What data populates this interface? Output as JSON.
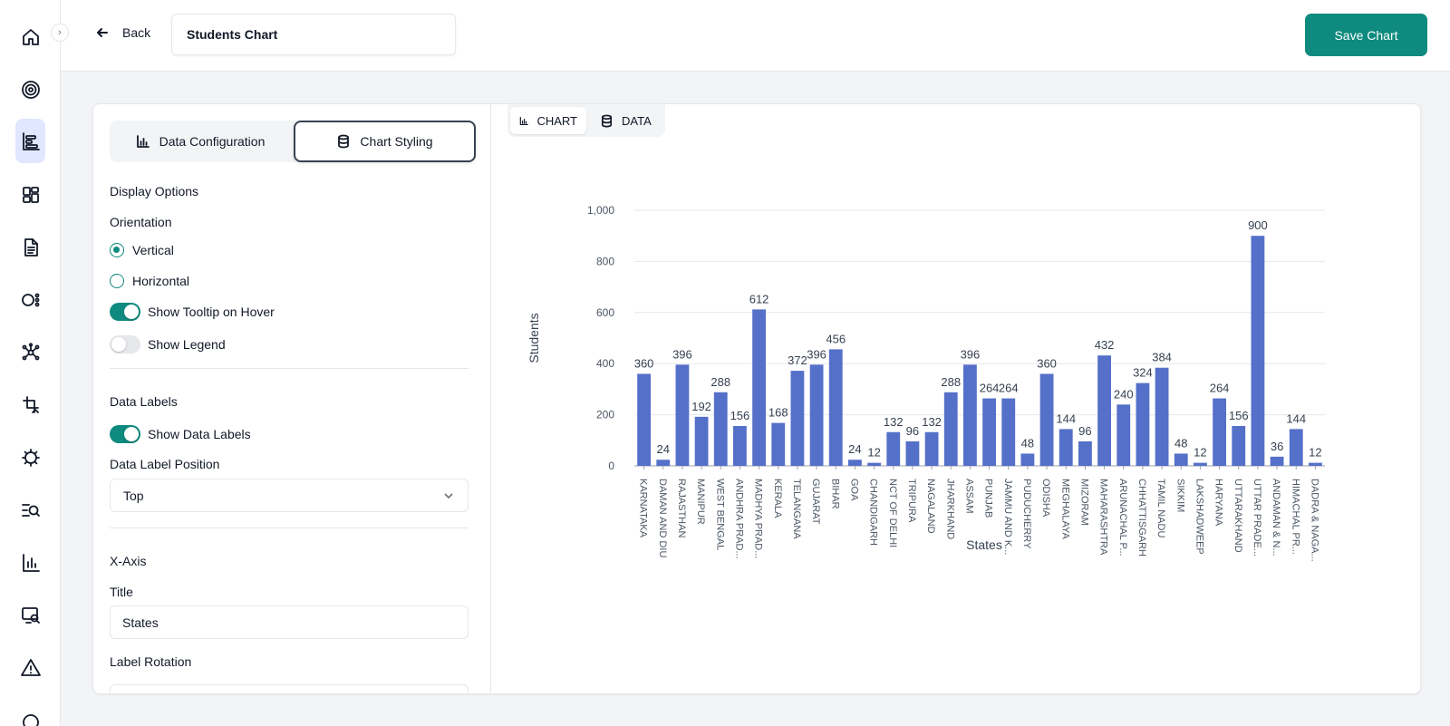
{
  "sidebar": {
    "toggle_icon": "chevron-right-icon",
    "items": [
      {
        "icon": "home-icon",
        "active": false
      },
      {
        "icon": "target-icon",
        "active": false
      },
      {
        "icon": "chart-builder-icon",
        "active": true
      },
      {
        "icon": "dashboard-grid-icon",
        "active": false
      },
      {
        "icon": "document-icon",
        "active": false
      },
      {
        "icon": "flow-icon",
        "active": false
      },
      {
        "icon": "network-icon",
        "active": false
      },
      {
        "icon": "transform-icon",
        "active": false
      },
      {
        "icon": "settings-gear-icon",
        "active": false
      },
      {
        "icon": "list-search-icon",
        "active": false
      },
      {
        "icon": "bar-chart-icon",
        "active": false
      },
      {
        "icon": "monitor-search-icon",
        "active": false
      },
      {
        "icon": "warning-icon",
        "active": false
      }
    ]
  },
  "header": {
    "back_label": "Back",
    "chart_name": "Students Chart",
    "save_label": "Save Chart"
  },
  "config": {
    "tabs": {
      "data_configuration": "Data Configuration",
      "chart_styling": "Chart Styling"
    },
    "active_tab": "chart_styling",
    "display_options": {
      "heading": "Display Options",
      "orientation_label": "Orientation",
      "vertical_label": "Vertical",
      "horizontal_label": "Horizontal",
      "orientation_value": "vertical",
      "tooltip_label": "Show Tooltip on Hover",
      "tooltip_on": true,
      "legend_label": "Show Legend",
      "legend_on": false
    },
    "data_labels": {
      "heading": "Data Labels",
      "show_label": "Show Data Labels",
      "show_on": true,
      "position_label": "Data Label Position",
      "position_value": "Top"
    },
    "x_axis": {
      "heading": "X-Axis",
      "title_label": "Title",
      "title_value": "States",
      "rotation_label": "Label Rotation"
    }
  },
  "view_tabs": {
    "chart": "CHART",
    "data": "DATA",
    "active": "chart"
  },
  "colors": {
    "accent": "#0f8a7e",
    "bar": "#5570c9"
  },
  "chart_data": {
    "type": "bar",
    "orientation": "vertical",
    "xlabel": "States",
    "ylabel": "Students",
    "ylim": [
      0,
      1000
    ],
    "yticks": [
      "0",
      "200",
      "400",
      "600",
      "800",
      "1,000"
    ],
    "grid": true,
    "legend": false,
    "data_labels": "top",
    "categories": [
      "KARNATAKA",
      "DAMAN AND DIU",
      "RAJASTHAN",
      "MANIPUR",
      "WEST BENGAL",
      "ANDHRA PRAD...",
      "MADHYA PRAD...",
      "KERALA",
      "TELANGANA",
      "GUJARAT",
      "BIHAR",
      "GOA",
      "CHANDIGARH",
      "NCT OF DELHI",
      "TRIPURA",
      "NAGALAND",
      "JHARKHAND",
      "ASSAM",
      "PUNJAB",
      "JAMMU AND K...",
      "PUDUCHERRY",
      "ODISHA",
      "MEGHALAYA",
      "MIZORAM",
      "MAHARASHTRA",
      "ARUNACHAL P...",
      "CHHATTISGARH",
      "TAMIL NADU",
      "SIKKIM",
      "LAKSHADWEEP",
      "HARYANA",
      "UTTARAKHAND",
      "UTTAR PRADE...",
      "ANDAMAN & N...",
      "HIMACHAL PR...",
      "DADRA & NAGA..."
    ],
    "values": [
      360,
      24,
      396,
      192,
      288,
      156,
      612,
      168,
      372,
      396,
      456,
      24,
      12,
      132,
      96,
      132,
      288,
      396,
      264,
      264,
      48,
      360,
      144,
      96,
      432,
      240,
      324,
      384,
      48,
      12,
      264,
      156,
      900,
      36,
      144,
      12
    ]
  }
}
